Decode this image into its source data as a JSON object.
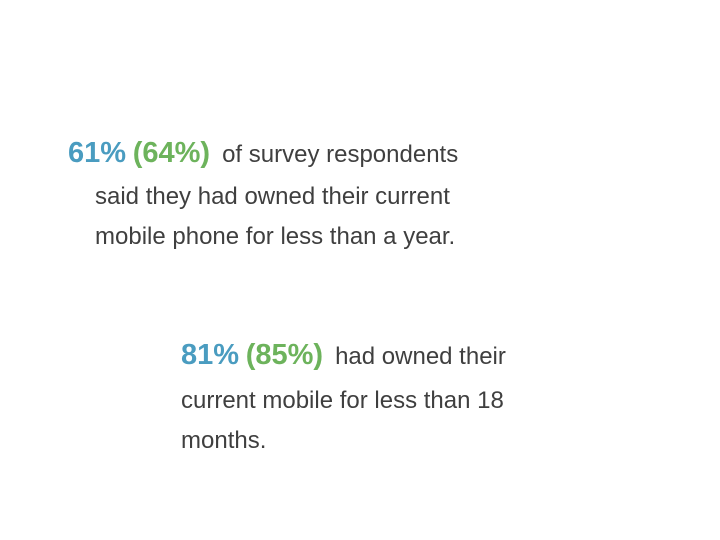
{
  "stats": [
    {
      "value": "61%",
      "previous": "(64%)",
      "lines": [
        "of survey respondents",
        "said they had owned their current",
        "mobile phone for less than a year."
      ]
    },
    {
      "value": "81%",
      "previous": "(85%)",
      "lines": [
        "had owned their",
        "current mobile for less than 18",
        "months."
      ]
    }
  ]
}
